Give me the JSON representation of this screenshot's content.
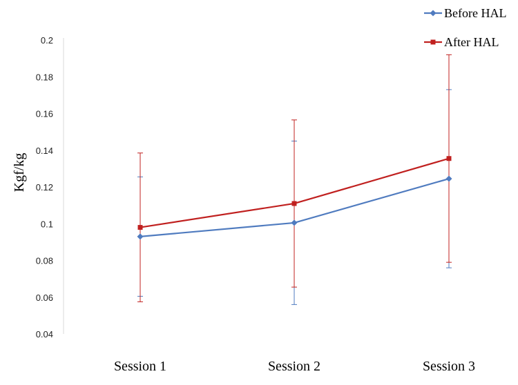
{
  "chart_data": {
    "type": "line",
    "categories": [
      "Session 1",
      "Session 2",
      "Session 3"
    ],
    "ylabel": "Kgf/kg",
    "xlabel": "",
    "ylim": [
      0.04,
      0.2
    ],
    "yticks": [
      0.04,
      0.06,
      0.08,
      0.1,
      0.12,
      0.14,
      0.16,
      0.18,
      0.2
    ],
    "ytick_labels": [
      "0.04",
      "0.06",
      "0.08",
      "0.1",
      "0.12",
      "0.14",
      "0.16",
      "0.18",
      "0.2"
    ],
    "grid": false,
    "legend_position": "top-right",
    "series": [
      {
        "name": "Before HAL",
        "color": "#4f7bbf",
        "marker": "diamond",
        "values": [
          0.093,
          0.1005,
          0.1245
        ],
        "error": [
          0.0325,
          0.0445,
          0.0485
        ]
      },
      {
        "name": "After HAL",
        "color": "#c0201f",
        "marker": "square",
        "values": [
          0.098,
          0.111,
          0.1355
        ],
        "error": [
          0.0405,
          0.0455,
          0.0565
        ]
      }
    ]
  }
}
